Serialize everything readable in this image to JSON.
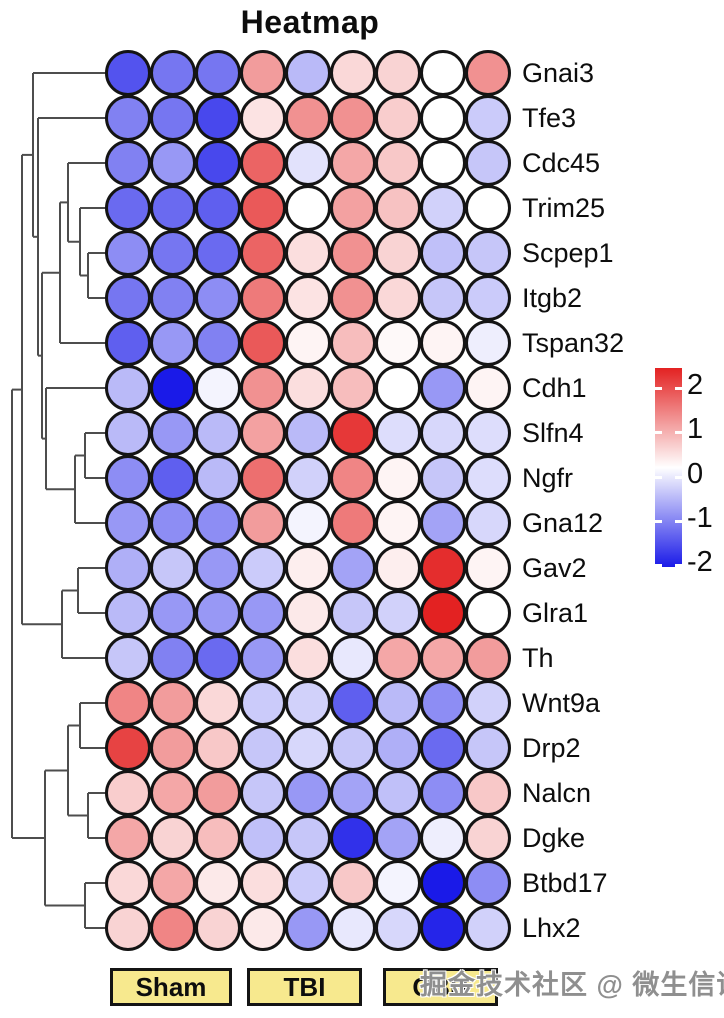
{
  "title": "Heatmap",
  "watermark": "掘金技术社区 @ 微生信课堂",
  "colors": {
    "positive": "#E32222",
    "negative": "#1A1AE8",
    "zero": "#FFFFFF",
    "circle_border": "#141414",
    "dendrogram": "#4d4d4d",
    "group_box_fill": "#F7E98E",
    "group_box_border": "#141414",
    "watermark": "#8F8F8F"
  },
  "groups": [
    {
      "label": "Sham",
      "columns": 3
    },
    {
      "label": "TBI",
      "columns": 3
    },
    {
      "label": "CBD",
      "columns": 3
    }
  ],
  "legend": {
    "ticks": [
      2,
      1,
      0,
      -1,
      -2
    ],
    "max": 2,
    "min": -2
  },
  "chart_data": {
    "type": "heatmap",
    "style": "circle-matrix with row dendrogram",
    "title": "Heatmap",
    "value_range": [
      -2,
      2
    ],
    "colormap": "blue-white-red",
    "legend_position": "right",
    "column_groups": [
      "Sham",
      "TBI",
      "CBD"
    ],
    "columns_per_group": 3,
    "rows": [
      "Gnai3",
      "Tfe3",
      "Cdc45",
      "Trim25",
      "Scpep1",
      "Itgb2",
      "Tspan32",
      "Cdh1",
      "Slfn4",
      "Ngfr",
      "Gna12",
      "Gav2",
      "Glra1",
      "Th",
      "Wnt9a",
      "Drp2",
      "Nalcn",
      "Dgke",
      "Btbd17",
      "Lhx2"
    ],
    "values": [
      [
        -1.5,
        -1.2,
        -1.2,
        0.9,
        -0.6,
        0.35,
        0.4,
        0.0,
        1.0
      ],
      [
        -1.1,
        -1.2,
        -1.6,
        0.25,
        1.0,
        1.0,
        0.45,
        0.0,
        -0.45
      ],
      [
        -1.1,
        -0.9,
        -1.6,
        1.4,
        -0.25,
        0.8,
        0.5,
        0.0,
        -0.5
      ],
      [
        -1.3,
        -1.3,
        -1.4,
        1.5,
        0.0,
        0.85,
        0.55,
        -0.4,
        0.0
      ],
      [
        -1.0,
        -1.2,
        -1.3,
        1.4,
        0.3,
        1.0,
        0.4,
        -0.55,
        -0.5
      ],
      [
        -1.2,
        -1.1,
        -1.0,
        1.2,
        0.25,
        1.0,
        0.35,
        -0.5,
        -0.45
      ],
      [
        -1.4,
        -0.9,
        -1.1,
        1.5,
        0.1,
        0.6,
        0.05,
        0.1,
        -0.15
      ],
      [
        -0.6,
        -2.0,
        -0.1,
        1.0,
        0.3,
        0.6,
        0.0,
        -0.9,
        0.1
      ],
      [
        -0.6,
        -0.9,
        -0.6,
        0.85,
        -0.6,
        1.8,
        -0.3,
        -0.35,
        -0.3
      ],
      [
        -1.0,
        -1.4,
        -0.6,
        1.3,
        -0.4,
        1.1,
        0.1,
        -0.5,
        -0.3
      ],
      [
        -0.9,
        -1.0,
        -1.0,
        0.9,
        -0.1,
        1.2,
        0.1,
        -0.8,
        -0.35
      ],
      [
        -0.7,
        -0.5,
        -0.9,
        -0.45,
        0.15,
        -0.8,
        0.15,
        1.9,
        0.1
      ],
      [
        -0.6,
        -0.9,
        -0.9,
        -0.9,
        0.2,
        -0.5,
        -0.4,
        2.0,
        0.0
      ],
      [
        -0.5,
        -1.1,
        -1.3,
        -0.9,
        0.3,
        -0.2,
        0.8,
        0.8,
        0.9
      ],
      [
        1.1,
        0.9,
        0.35,
        -0.45,
        -0.4,
        -1.4,
        -0.6,
        -1.0,
        -0.4
      ],
      [
        1.7,
        0.9,
        0.5,
        -0.5,
        -0.35,
        -0.5,
        -0.7,
        -1.3,
        -0.5
      ],
      [
        0.45,
        0.8,
        0.9,
        -0.5,
        -0.9,
        -0.8,
        -0.55,
        -1.0,
        0.5
      ],
      [
        0.8,
        0.4,
        0.6,
        -0.55,
        -0.5,
        -1.8,
        -0.8,
        -0.15,
        0.4
      ],
      [
        0.35,
        0.8,
        0.2,
        0.3,
        -0.45,
        0.5,
        -0.1,
        -2.0,
        -1.0
      ],
      [
        0.4,
        1.1,
        0.4,
        0.2,
        -0.9,
        -0.2,
        -0.35,
        -1.9,
        -0.4
      ]
    ]
  },
  "dendrogram": {
    "merges": [
      [
        88,
        106,
        253,
        106,
        298
      ],
      [
        80,
        106,
        208,
        88,
        275.5
      ],
      [
        68,
        106,
        163,
        80,
        241.75
      ],
      [
        60,
        68,
        202.4,
        106,
        343
      ],
      [
        85,
        106,
        433,
        106,
        478
      ],
      [
        75,
        85,
        455.5,
        106,
        523
      ],
      [
        46,
        106,
        388,
        75,
        489.25
      ],
      [
        42,
        60,
        272.7,
        46,
        438.6
      ],
      [
        38,
        106,
        118,
        42,
        355.65
      ],
      [
        33,
        106,
        73,
        38,
        236.8
      ],
      [
        78,
        106,
        568,
        106,
        613
      ],
      [
        62,
        78,
        590.5,
        106,
        658
      ],
      [
        22,
        33,
        154.9,
        62,
        624.25
      ],
      [
        80,
        106,
        703,
        106,
        748
      ],
      [
        88,
        106,
        793,
        106,
        838
      ],
      [
        68,
        80,
        725.5,
        88,
        815.5
      ],
      [
        85,
        106,
        883,
        106,
        928
      ],
      [
        45,
        68,
        770.5,
        85,
        905.5
      ],
      [
        12,
        22,
        389.6,
        45,
        838
      ]
    ]
  }
}
